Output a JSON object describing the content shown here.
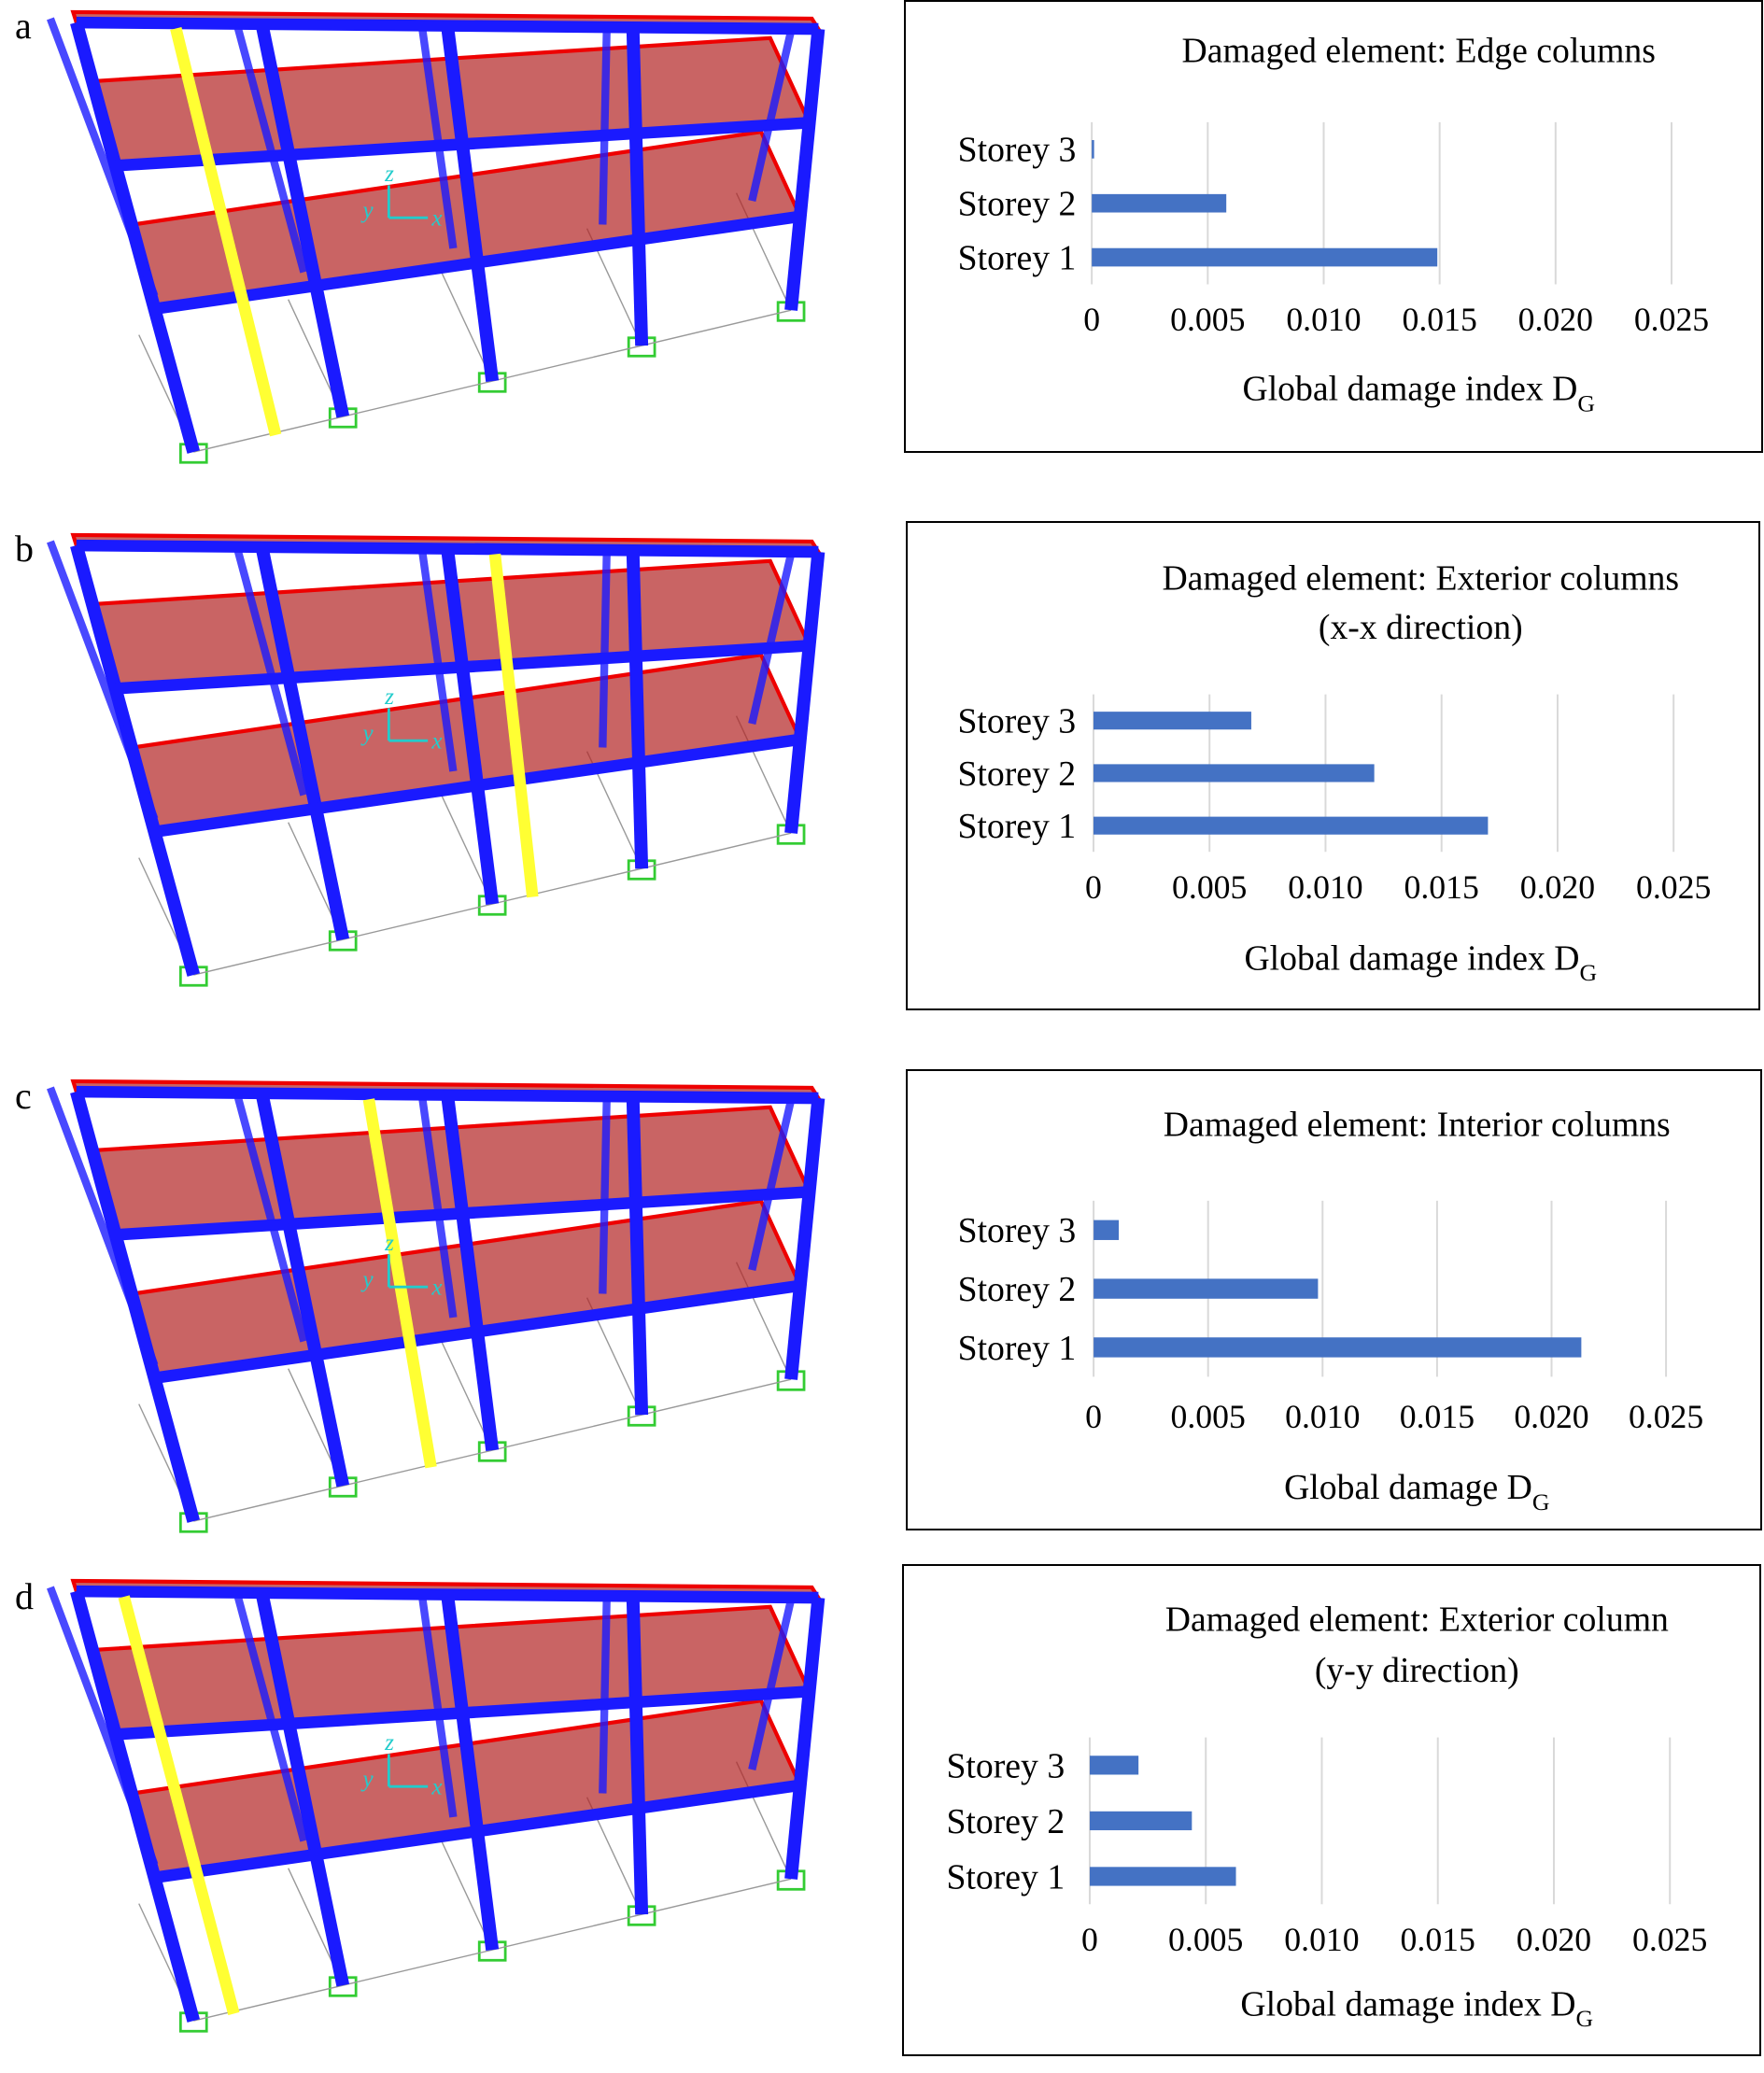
{
  "panels": [
    {
      "label": "a"
    },
    {
      "label": "b"
    },
    {
      "label": "c"
    },
    {
      "label": "d"
    }
  ],
  "model": {
    "axis_labels": {
      "x": "x",
      "y": "y",
      "z": "z"
    }
  },
  "colors": {
    "bar": "#4472c4",
    "grid": "#d9d9d9",
    "slab": "#b22222",
    "frame": "#1a1aff",
    "damaged_column": "#ffff33",
    "supports": "#33cc33"
  },
  "chart_data": [
    {
      "type": "bar",
      "orientation": "horizontal",
      "title": [
        "Damaged element: Edge columns"
      ],
      "categories": [
        "Storey 3",
        "Storey 2",
        "Storey 1"
      ],
      "values": [
        0.0001,
        0.0058,
        0.0149
      ],
      "xlabel": "Global damage index D",
      "xlabel_sub": "G",
      "xlim": [
        0,
        0.025
      ],
      "xticks": [
        "0",
        "0.005",
        "0.010",
        "0.015",
        "0.020",
        "0.025"
      ],
      "grid": true
    },
    {
      "type": "bar",
      "orientation": "horizontal",
      "title": [
        "Damaged element: Exterior columns",
        "(x-x direction)"
      ],
      "categories": [
        "Storey 3",
        "Storey 2",
        "Storey 1"
      ],
      "values": [
        0.0068,
        0.0121,
        0.017
      ],
      "xlabel": "Global damage index D",
      "xlabel_sub": "G",
      "xlim": [
        0,
        0.025
      ],
      "xticks": [
        "0",
        "0.005",
        "0.010",
        "0.015",
        "0.020",
        "0.025"
      ],
      "grid": true
    },
    {
      "type": "bar",
      "orientation": "horizontal",
      "title": [
        "Damaged element: Interior columns"
      ],
      "categories": [
        "Storey 3",
        "Storey 2",
        "Storey 1"
      ],
      "values": [
        0.0011,
        0.0098,
        0.0213
      ],
      "xlabel": "Global damage D",
      "xlabel_sub": "G",
      "xlim": [
        0,
        0.025
      ],
      "xticks": [
        "0",
        "0.005",
        "0.010",
        "0.015",
        "0.020",
        "0.025"
      ],
      "grid": true
    },
    {
      "type": "bar",
      "orientation": "horizontal",
      "title": [
        "Damaged element: Exterior column",
        "(y-y direction)"
      ],
      "categories": [
        "Storey 3",
        "Storey 2",
        "Storey 1"
      ],
      "values": [
        0.0021,
        0.0044,
        0.0063
      ],
      "xlabel": "Global damage index D",
      "xlabel_sub": "G",
      "xlim": [
        0,
        0.025
      ],
      "xticks": [
        "0",
        "0.005",
        "0.010",
        "0.015",
        "0.020",
        "0.025"
      ],
      "grid": true
    }
  ]
}
